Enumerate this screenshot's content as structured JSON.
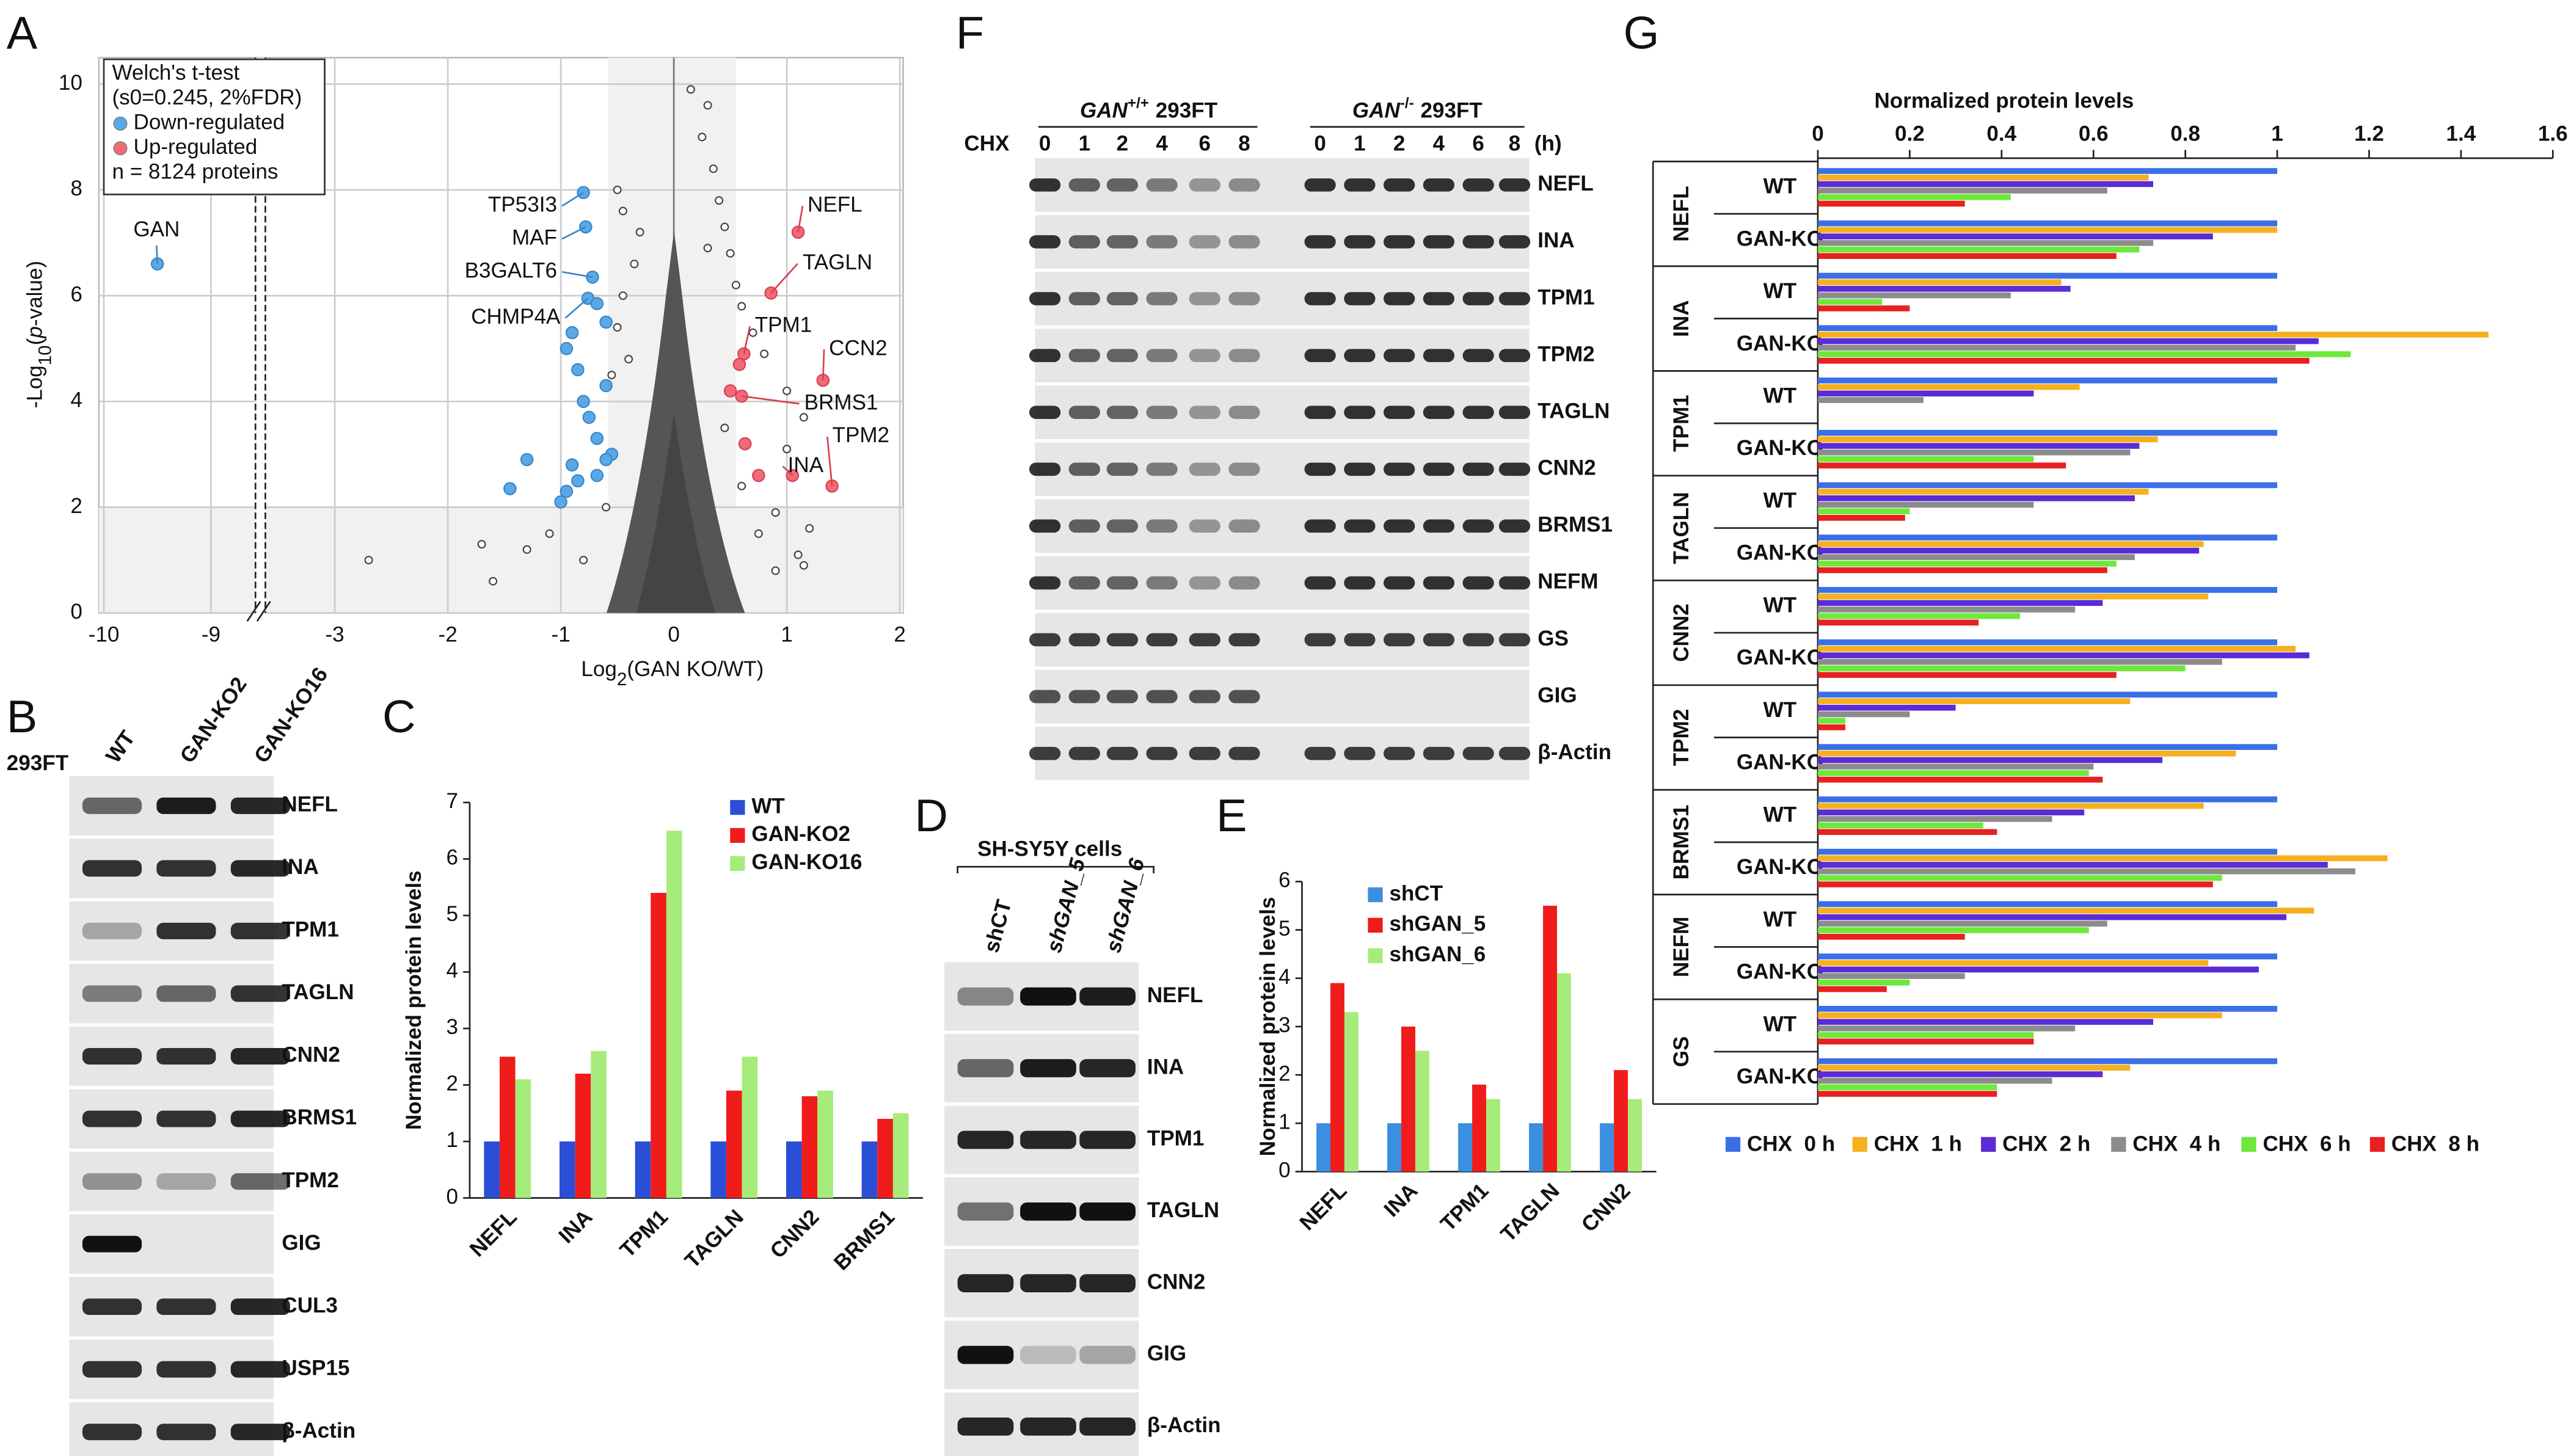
{
  "panel_labels": [
    "A",
    "B",
    "C",
    "D",
    "E",
    "F",
    "G"
  ],
  "chart_data": [
    {
      "type": "scatter",
      "legend_title": [
        "Welch's t-test",
        "(s0=0.245, 2%FDR)"
      ],
      "legend_note": "n = 8124 proteins",
      "xlabel": {
        "pre": "Log",
        "sub": "2",
        "post": "(GAN KO/WT)"
      },
      "ylabel": {
        "pre": "-Log",
        "sub": "10",
        "open": "(",
        "italic": "p",
        "post": "-value)"
      },
      "xlim": [
        -10,
        2
      ],
      "xbreak": [
        -8.6,
        -3.6
      ],
      "ylim": [
        0,
        10.5
      ],
      "xticks": [
        -10,
        -9,
        -3,
        -2,
        -1,
        0,
        1,
        2
      ],
      "yticks": [
        0,
        2,
        4,
        6,
        8,
        10
      ],
      "grid": true,
      "series": [
        {
          "name": "Down-regulated",
          "color": "#5aa9e6",
          "x": [
            -9.5,
            -0.8,
            -0.78,
            -0.72,
            -0.76,
            -0.9,
            -0.95,
            -0.68,
            -0.6,
            -0.85,
            -0.6,
            -0.8,
            -0.75,
            -0.68,
            -0.55,
            -0.9,
            -1.3,
            -1.45,
            -0.95,
            -1.0,
            -0.85,
            -0.68,
            -0.6
          ],
          "y": [
            6.6,
            7.95,
            7.3,
            6.35,
            5.95,
            5.3,
            5.0,
            5.85,
            5.5,
            4.6,
            4.3,
            4.0,
            3.7,
            3.3,
            3.0,
            2.8,
            2.9,
            2.35,
            2.3,
            2.1,
            2.5,
            2.6,
            2.9
          ],
          "labels": [
            "GAN",
            "TP53I3",
            "MAF",
            "B3GALT6",
            "CHMP4A",
            null,
            null,
            null,
            null,
            null,
            null,
            null,
            null,
            null,
            null,
            null,
            null,
            null,
            null,
            null,
            null,
            null,
            null
          ]
        },
        {
          "name": "Up-regulated",
          "color": "#f06a78",
          "x": [
            1.1,
            0.86,
            0.62,
            1.32,
            0.6,
            1.4,
            1.05,
            0.58,
            0.63,
            0.75,
            0.5
          ],
          "y": [
            7.2,
            6.05,
            4.9,
            4.4,
            4.1,
            2.4,
            2.6,
            4.7,
            3.2,
            2.6,
            4.2
          ],
          "labels": [
            "NEFL",
            "TAGLN",
            "TPM1",
            "CCN2",
            "BRMS1",
            "TPM2",
            "INA",
            null,
            null,
            null,
            null
          ]
        },
        {
          "color": "#444444",
          "x": [
            -2.7,
            -1.7,
            -1.6,
            -0.5,
            -0.45,
            0.3,
            0.25,
            0.35,
            0.15,
            0.4,
            0.45,
            0.5,
            0.55,
            0.3,
            -0.3,
            -0.35,
            -0.45,
            -0.5,
            0.6,
            0.7,
            0.8,
            1.0,
            1.15,
            1.0,
            0.9,
            1.1,
            1.15,
            -0.4,
            -0.55,
            -1.1,
            -1.3,
            -0.6,
            0.45,
            0.6,
            0.75,
            -0.8,
            0.9,
            1.2
          ],
          "y": [
            1.0,
            1.3,
            0.6,
            8.0,
            7.6,
            9.6,
            9.0,
            8.4,
            9.9,
            7.8,
            7.3,
            6.8,
            6.2,
            6.9,
            7.2,
            6.6,
            6.0,
            5.4,
            5.8,
            5.3,
            4.9,
            4.2,
            3.7,
            3.1,
            1.9,
            1.1,
            0.9,
            4.8,
            4.5,
            1.5,
            1.2,
            2.0,
            3.5,
            2.4,
            1.5,
            1.0,
            0.8,
            1.6
          ]
        }
      ]
    },
    {
      "type": "bar",
      "ylabel": "Normalized protein levels",
      "categories": [
        "NEFL",
        "INA",
        "TPM1",
        "TAGLN",
        "CNN2",
        "BRMS1"
      ],
      "series": [
        {
          "name": "WT",
          "color": "#2a4fd6",
          "values": [
            1,
            1,
            1,
            1,
            1,
            1
          ]
        },
        {
          "name": "GAN-KO2",
          "color": "#f01c1c",
          "values": [
            2.5,
            2.2,
            5.4,
            1.9,
            1.8,
            1.4
          ]
        },
        {
          "name": "GAN-KO16",
          "color": "#a6ec7a",
          "values": [
            2.1,
            2.6,
            6.5,
            2.5,
            1.9,
            1.5
          ]
        }
      ],
      "ylim": [
        0,
        7
      ],
      "yticks": [
        0,
        1,
        2,
        3,
        4,
        5,
        6,
        7
      ],
      "legend": "top-right"
    },
    {
      "type": "bar",
      "ylabel": "Normalized protein levels",
      "categories": [
        "NEFL",
        "INA",
        "TPM1",
        "TAGLN",
        "CNN2"
      ],
      "series": [
        {
          "name": "shCT",
          "color": "#3b8fe0",
          "values": [
            1,
            1,
            1,
            1,
            1
          ]
        },
        {
          "name": "shGAN_5",
          "color": "#f01c1c",
          "values": [
            3.9,
            3.0,
            1.8,
            5.5,
            2.1
          ]
        },
        {
          "name": "shGAN_6",
          "color": "#a6ec7a",
          "values": [
            3.3,
            2.5,
            1.5,
            4.1,
            1.5
          ]
        }
      ],
      "ylim": [
        0,
        6
      ],
      "yticks": [
        0,
        1,
        2,
        3,
        4,
        5,
        6
      ],
      "legend": "top-left"
    },
    {
      "type": "hbar",
      "title": "Normalized protein levels",
      "groups": [
        "NEFL",
        "INA",
        "TPM1",
        "TAGLN",
        "CNN2",
        "TPM2",
        "BRMS1",
        "NEFM",
        "GS"
      ],
      "categories": [
        "WT",
        "GAN-KO",
        "WT",
        "GAN-KO",
        "WT",
        "GAN-KO",
        "WT",
        "GAN-KO",
        "WT",
        "GAN-KO",
        "WT",
        "GAN-KO",
        "WT",
        "GAN-KO",
        "WT",
        "GAN-KO",
        "WT",
        "GAN-KO"
      ],
      "series": [
        {
          "name": "CHX  0 h",
          "color": "#3a6fe8",
          "values": [
            1,
            1,
            1,
            1,
            1,
            1,
            1,
            1,
            1,
            1,
            1,
            1,
            1,
            1,
            1,
            1,
            1,
            1
          ]
        },
        {
          "name": "CHX  1 h",
          "color": "#f5b020",
          "values": [
            0.72,
            1.0,
            0.53,
            1.46,
            0.57,
            0.74,
            0.72,
            0.84,
            0.85,
            1.04,
            0.68,
            0.91,
            0.84,
            1.24,
            1.08,
            0.85,
            0.88,
            0.68
          ]
        },
        {
          "name": "CHX  2 h",
          "color": "#5a2bd6",
          "values": [
            0.73,
            0.86,
            0.55,
            1.09,
            0.47,
            0.7,
            0.69,
            0.83,
            0.62,
            1.07,
            0.3,
            0.75,
            0.58,
            1.11,
            1.02,
            0.96,
            0.73,
            0.62
          ]
        },
        {
          "name": "CHX  4 h",
          "color": "#8c8c8c",
          "values": [
            0.63,
            0.73,
            0.42,
            1.04,
            0.23,
            0.68,
            0.47,
            0.69,
            0.56,
            0.88,
            0.2,
            0.6,
            0.51,
            1.17,
            0.63,
            0.32,
            0.56,
            0.51
          ]
        },
        {
          "name": "CHX  6 h",
          "color": "#6ee83a",
          "values": [
            0.42,
            0.7,
            0.14,
            1.16,
            null,
            0.47,
            0.2,
            0.65,
            0.44,
            0.8,
            0.06,
            0.59,
            0.36,
            0.88,
            0.59,
            0.2,
            0.47,
            0.39
          ]
        },
        {
          "name": "CHX  8 h",
          "color": "#e82020",
          "values": [
            0.32,
            0.65,
            0.2,
            1.07,
            null,
            0.54,
            0.19,
            0.63,
            0.35,
            0.65,
            0.06,
            0.62,
            0.39,
            0.86,
            0.32,
            0.15,
            0.47,
            0.39
          ]
        }
      ],
      "xlim": [
        0,
        1.6
      ],
      "xticks": [
        0,
        0.2,
        0.4,
        0.6,
        0.8,
        1,
        1.2,
        1.4,
        1.6
      ],
      "legend": "bottom"
    }
  ],
  "blots": [
    {
      "header": "293FT",
      "lanes": [
        "WT",
        "GAN-KO2",
        "GAN-KO16"
      ],
      "rows": [
        "NEFL",
        "INA",
        "TPM1",
        "TAGLN",
        "CNN2",
        "BRMS1",
        "TPM2",
        "GIG",
        "CUL3",
        "USP15",
        "β-Actin"
      ]
    },
    {
      "groups": [
        {
          "gene": "GAN",
          "sup": "+/+",
          "cell": "293FT"
        },
        {
          "gene": "GAN",
          "sup": "-/-",
          "cell": "293FT"
        }
      ],
      "lane_title": "CHX",
      "lanes": [
        "0",
        "1",
        "2",
        "4",
        "6",
        "8",
        "0",
        "1",
        "2",
        "4",
        "6",
        "8"
      ],
      "unit": "(h)",
      "rows": [
        "NEFL",
        "INA",
        "TPM1",
        "TPM2",
        "TAGLN",
        "CNN2",
        "BRMS1",
        "NEFM",
        "GS",
        "GIG",
        "β-Actin"
      ]
    },
    {
      "header": "SH-SY5Y cells",
      "lanes": [
        "shCT",
        "shGAN_5",
        "shGAN_6"
      ],
      "rows": [
        "NEFL",
        "INA",
        "TPM1",
        "TAGLN",
        "CNN2",
        "GIG",
        "β-Actin"
      ]
    }
  ]
}
